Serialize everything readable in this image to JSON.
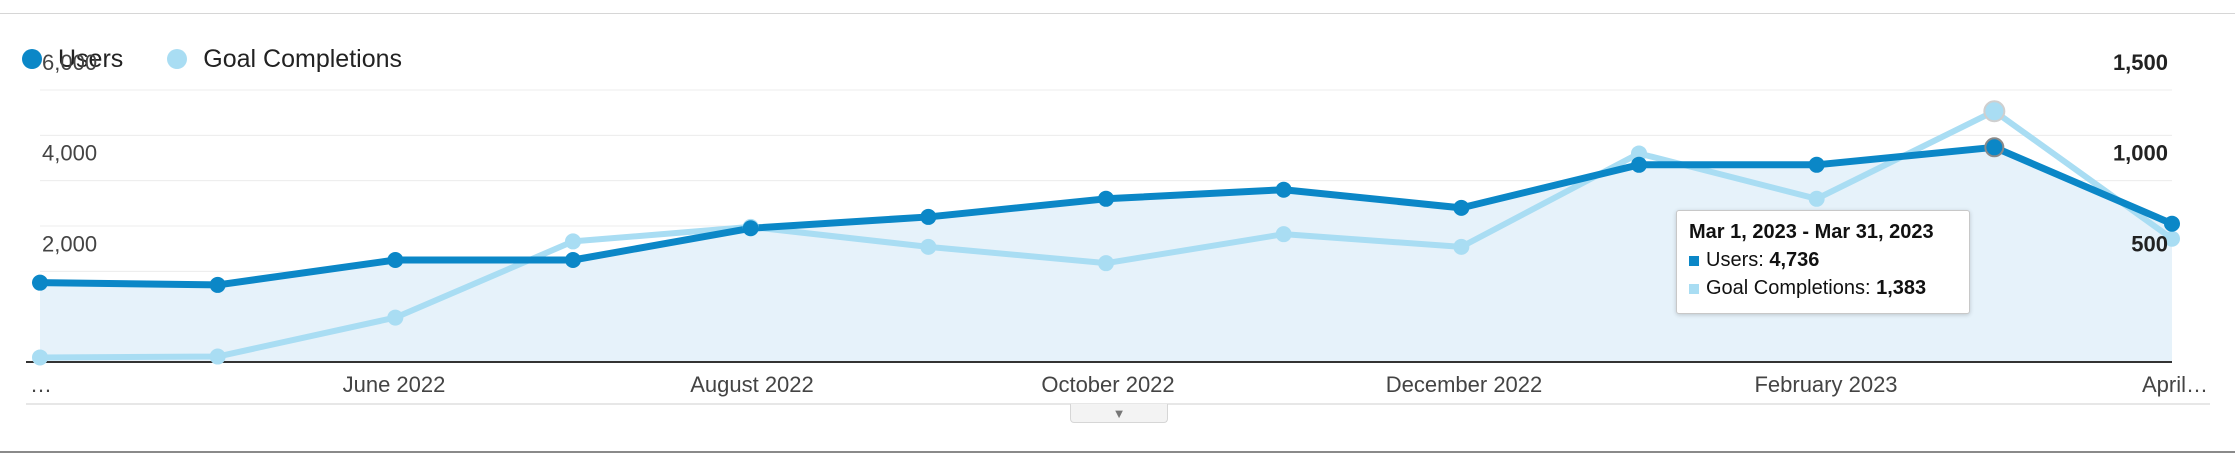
{
  "legend": {
    "users_label": "Users",
    "goals_label": "Goal Completions"
  },
  "colors": {
    "users": "#0b87c7",
    "goals": "#a9ddf3",
    "area": "#e6f2fa"
  },
  "tooltip": {
    "title": "Mar 1, 2023 - Mar 31, 2023",
    "users_label": "Users: ",
    "users_value": "4,736",
    "goals_label": "Goal Completions: ",
    "goals_value": "1,383"
  },
  "expand_icon": "caret-down-icon",
  "chart_data": {
    "type": "line",
    "title": "",
    "xlabel": "",
    "ylabel": "",
    "x_tick_labels": [
      "…",
      "June 2022",
      "August 2022",
      "October 2022",
      "December 2022",
      "February 2023",
      "April…"
    ],
    "y_left": {
      "ticks": [
        "6,000",
        "4,000",
        "2,000"
      ],
      "range": [
        0,
        6000
      ]
    },
    "y_right": {
      "ticks": [
        "1,500",
        "1,000",
        "500"
      ],
      "range": [
        0,
        1500
      ]
    },
    "grid": true,
    "legend_position": "top-left",
    "series": [
      {
        "name": "Users",
        "axis": "left",
        "values": [
          1750,
          1700,
          2250,
          2250,
          2950,
          3200,
          3600,
          3800,
          3400,
          4350,
          4350,
          4736,
          3050
        ]
      },
      {
        "name": "Goal Completions",
        "axis": "right",
        "values": [
          25,
          30,
          245,
          665,
          745,
          635,
          545,
          705,
          635,
          1150,
          900,
          1383,
          680
        ]
      }
    ],
    "highlighted_point": {
      "index": 11
    }
  }
}
